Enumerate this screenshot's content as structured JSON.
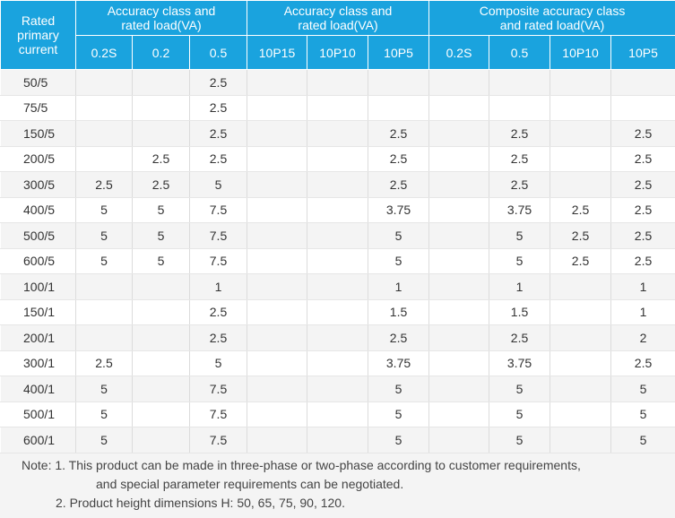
{
  "header": {
    "rated_primary_current": [
      "Rated",
      "primary",
      "current"
    ],
    "groups": [
      [
        "Accuracy class and",
        "rated load(VA)"
      ],
      [
        "Accuracy class and",
        "rated load(VA)"
      ],
      [
        "Composite accuracy class",
        "and rated load(VA)"
      ]
    ],
    "columns": [
      "0.2S",
      "0.2",
      "0.5",
      "10P15",
      "10P10",
      "10P5",
      "0.2S",
      "0.5",
      "10P10",
      "10P5"
    ]
  },
  "rows": [
    [
      "50/5",
      "",
      "",
      "2.5",
      "",
      "",
      "",
      "",
      "",
      "",
      ""
    ],
    [
      "75/5",
      "",
      "",
      "2.5",
      "",
      "",
      "",
      "",
      "",
      "",
      ""
    ],
    [
      "150/5",
      "",
      "",
      "2.5",
      "",
      "",
      "2.5",
      "",
      "2.5",
      "",
      "2.5"
    ],
    [
      "200/5",
      "",
      "2.5",
      "2.5",
      "",
      "",
      "2.5",
      "",
      "2.5",
      "",
      "2.5"
    ],
    [
      "300/5",
      "2.5",
      "2.5",
      "5",
      "",
      "",
      "2.5",
      "",
      "2.5",
      "",
      "2.5"
    ],
    [
      "400/5",
      "5",
      "5",
      "7.5",
      "",
      "",
      "3.75",
      "",
      "3.75",
      "2.5",
      "2.5"
    ],
    [
      "500/5",
      "5",
      "5",
      "7.5",
      "",
      "",
      "5",
      "",
      "5",
      "2.5",
      "2.5"
    ],
    [
      "600/5",
      "5",
      "5",
      "7.5",
      "",
      "",
      "5",
      "",
      "5",
      "2.5",
      "2.5"
    ],
    [
      "100/1",
      "",
      "",
      "1",
      "",
      "",
      "1",
      "",
      "1",
      "",
      "1"
    ],
    [
      "150/1",
      "",
      "",
      "2.5",
      "",
      "",
      "1.5",
      "",
      "1.5",
      "",
      "1"
    ],
    [
      "200/1",
      "",
      "",
      "2.5",
      "",
      "",
      "2.5",
      "",
      "2.5",
      "",
      "2"
    ],
    [
      "300/1",
      "2.5",
      "",
      "5",
      "",
      "",
      "3.75",
      "",
      "3.75",
      "",
      "2.5"
    ],
    [
      "400/1",
      "5",
      "",
      "7.5",
      "",
      "",
      "5",
      "",
      "5",
      "",
      "5"
    ],
    [
      "500/1",
      "5",
      "",
      "7.5",
      "",
      "",
      "5",
      "",
      "5",
      "",
      "5"
    ],
    [
      "600/1",
      "5",
      "",
      "7.5",
      "",
      "",
      "5",
      "",
      "5",
      "",
      "5"
    ]
  ],
  "note": {
    "line1": "Note: 1. This product can be made in three-phase or two-phase according to customer requirements,",
    "line2": "and special parameter requirements can be negotiated.",
    "line3": "2. Product height dimensions H: 50, 65, 75, 90, 120."
  },
  "colors": {
    "header_bg": "#1aa3de",
    "header_text": "#ffffff",
    "row_alt": "#f4f4f4"
  }
}
